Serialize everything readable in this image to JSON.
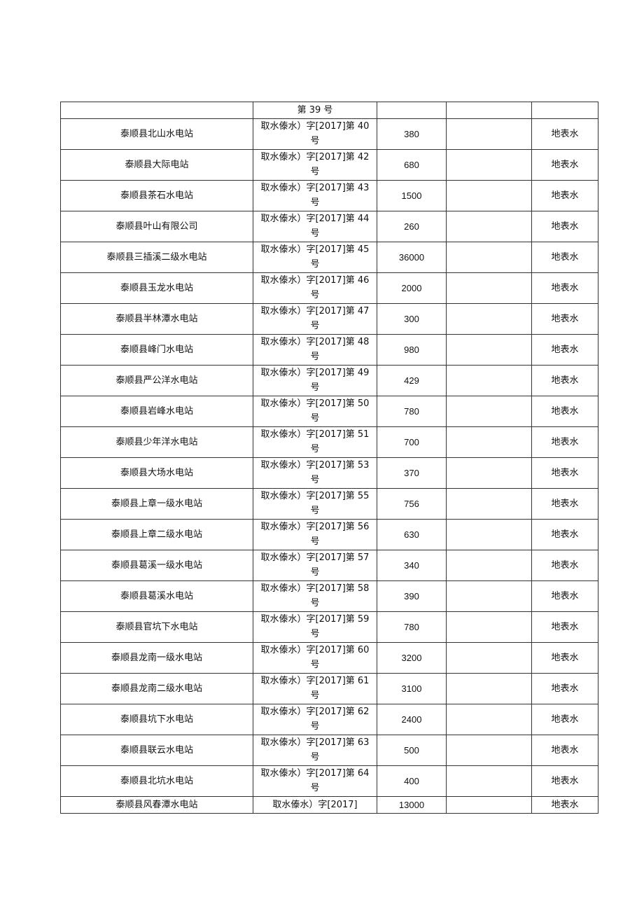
{
  "table": {
    "first_row": {
      "name": "",
      "permit": "第 39 号",
      "amount": "",
      "note": "",
      "source": ""
    },
    "rows": [
      {
        "name": "泰顺县北山水电站",
        "permit": "取水傣水）字[2017]第 40 号",
        "amount": "380",
        "note": "",
        "source": "地表水"
      },
      {
        "name": "泰顺县大际电站",
        "permit": "取水傣水）字[2017]第 42 号",
        "amount": "680",
        "note": "",
        "source": "地表水"
      },
      {
        "name": "泰顺县茶石水电站",
        "permit": "取水傣水）字[2017]第 43 号",
        "amount": "1500",
        "note": "",
        "source": "地表水"
      },
      {
        "name": "泰顺县叶山有限公司",
        "permit": "取水傣水）字[2017]第 44 号",
        "amount": "260",
        "note": "",
        "source": "地表水"
      },
      {
        "name": "泰顺县三插溪二级水电站",
        "permit": "取水傣水）字[2017]第 45 号",
        "amount": "36000",
        "note": "",
        "source": "地表水"
      },
      {
        "name": "泰顺县玉龙水电站",
        "permit": "取水傣水）字[2017]第 46 号",
        "amount": "2000",
        "note": "",
        "source": "地表水"
      },
      {
        "name": "泰顺县半林潭水电站",
        "permit": "取水傣水）字[2017]第 47 号",
        "amount": "300",
        "note": "",
        "source": "地表水"
      },
      {
        "name": "泰顺县峰门水电站",
        "permit": "取水傣水）字[2017]第 48 号",
        "amount": "980",
        "note": "",
        "source": "地表水"
      },
      {
        "name": "泰顺县严公洋水电站",
        "permit": "取水傣水）字[2017]第 49 号",
        "amount": "429",
        "note": "",
        "source": "地表水"
      },
      {
        "name": "泰顺县岩峰水电站",
        "permit": "取水傣水）字[2017]第 50 号",
        "amount": "780",
        "note": "",
        "source": "地表水"
      },
      {
        "name": "泰顺县少年洋水电站",
        "permit": "取水傣水）字[2017]第 51 号",
        "amount": "700",
        "note": "",
        "source": "地表水"
      },
      {
        "name": "泰顺县大场水电站",
        "permit": "取水傣水）字[2017]第 53 号",
        "amount": "370",
        "note": "",
        "source": "地表水"
      },
      {
        "name": "泰顺县上章一级水电站",
        "permit": "取水傣水）字[2017]第 55 号",
        "amount": "756",
        "note": "",
        "source": "地表水"
      },
      {
        "name": "泰顺县上章二级水电站",
        "permit": "取水傣水）字[2017]第 56 号",
        "amount": "630",
        "note": "",
        "source": "地表水"
      },
      {
        "name": "泰顺县葛溪一级水电站",
        "permit": "取水傣水）字[2017]第 57 号",
        "amount": "340",
        "note": "",
        "source": "地表水"
      },
      {
        "name": "泰顺县葛溪水电站",
        "permit": "取水傣水）字[2017]第 58 号",
        "amount": "390",
        "note": "",
        "source": "地表水"
      },
      {
        "name": "泰顺县官坑下水电站",
        "permit": "取水傣水）字[2017]第 59 号",
        "amount": "780",
        "note": "",
        "source": "地表水"
      },
      {
        "name": "泰顺县龙南一级水电站",
        "permit": "取水傣水）字[2017]第 60 号",
        "amount": "3200",
        "note": "",
        "source": "地表水"
      },
      {
        "name": "泰顺县龙南二级水电站",
        "permit": "取水傣水）字[2017]第 61 号",
        "amount": "3100",
        "note": "",
        "source": "地表水"
      },
      {
        "name": "泰顺县坑下水电站",
        "permit": "取水傣水）字[2017]第 62 号",
        "amount": "2400",
        "note": "",
        "source": "地表水"
      },
      {
        "name": "泰顺县联云水电站",
        "permit": "取水傣水）字[2017]第 63 号",
        "amount": "500",
        "note": "",
        "source": "地表水"
      },
      {
        "name": "泰顺县北坑水电站",
        "permit": "取水傣水）字[2017]第 64 号",
        "amount": "400",
        "note": "",
        "source": "地表水"
      }
    ],
    "last_row": {
      "name": "泰顺县风春潭水电站",
      "permit": "取水傣水）字[2017]",
      "amount": "13000",
      "note": "",
      "source": "地表水"
    }
  }
}
